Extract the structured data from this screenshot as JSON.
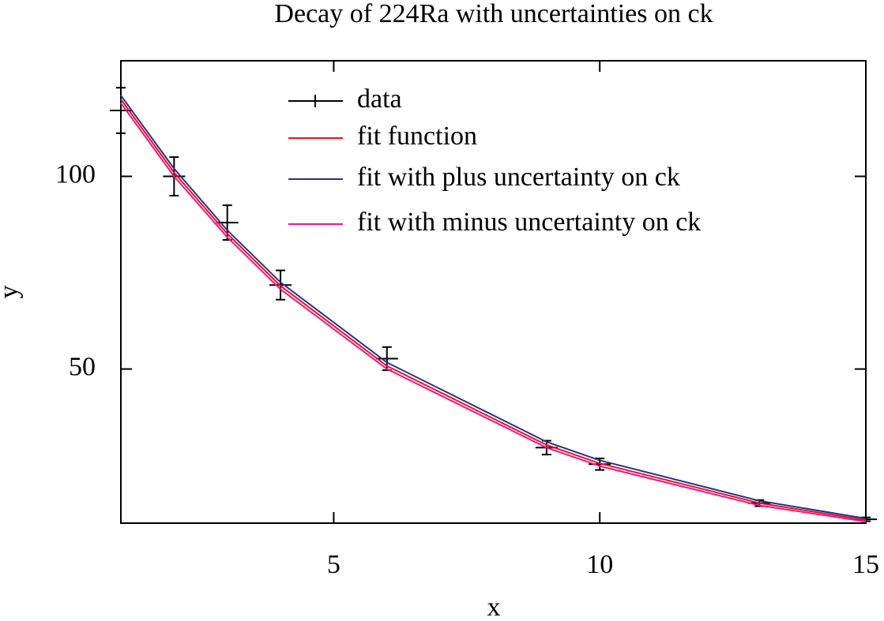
{
  "chart_data": {
    "type": "line",
    "title": "Decay of 224Ra with uncertainties on ck",
    "x_label": "x",
    "y_label": "y",
    "x": [
      1,
      2,
      3,
      4,
      6,
      9,
      10,
      13,
      15
    ],
    "series": [
      {
        "name": "data",
        "color": "#000000",
        "style": "errorbar",
        "values": [
          117.1,
          100,
          88,
          71.8,
          52.7,
          29.6,
          25.3,
          15.2,
          11
        ],
        "errors": [
          5.9,
          5,
          4.5,
          3.8,
          3,
          1.8,
          1.5,
          0.8,
          0.5
        ]
      },
      {
        "name": "fit function",
        "color": "#e8141c",
        "style": "line",
        "values": [
          120,
          101,
          85.1,
          71.6,
          50.8,
          30.3,
          25.5,
          15.2,
          10.8
        ]
      },
      {
        "name": "fit with plus uncertainty on ck",
        "color": "#2b2f8f",
        "style": "line",
        "values": [
          121,
          102,
          86,
          72.5,
          51.7,
          31.1,
          26.3,
          15.8,
          11.2
        ]
      },
      {
        "name": "fit with minus uncertainty on ck",
        "color": "#e6198c",
        "style": "line",
        "values": [
          119,
          100,
          84.2,
          70.7,
          50,
          29.6,
          24.8,
          14.6,
          10.4
        ]
      }
    ],
    "xlim": [
      1,
      15
    ],
    "ylim": [
      10,
      130
    ],
    "xticks": [
      5,
      10,
      15
    ],
    "yticks": [
      50,
      100
    ],
    "grid": false,
    "legend": "top"
  }
}
